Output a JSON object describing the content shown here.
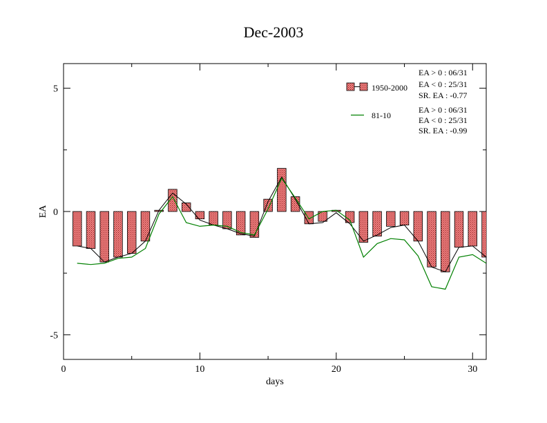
{
  "chart_data": {
    "type": "bar",
    "title": "Dec-2003",
    "xlabel": "days",
    "ylabel": "EA",
    "xlim": [
      0,
      31
    ],
    "ylim": [
      -6,
      6
    ],
    "x_ticks": [
      0,
      10,
      20,
      30
    ],
    "y_ticks": [
      -5,
      0,
      5
    ],
    "x": [
      1,
      2,
      3,
      4,
      5,
      6,
      7,
      8,
      9,
      10,
      11,
      12,
      13,
      14,
      15,
      16,
      17,
      18,
      19,
      20,
      21,
      22,
      23,
      24,
      25,
      26,
      27,
      28,
      29,
      30,
      31
    ],
    "series": [
      {
        "name": "1950-2000",
        "kind": "bar",
        "color": "#e87070",
        "values": [
          -1.4,
          -1.5,
          -2.05,
          -1.85,
          -1.7,
          -1.2,
          0.05,
          0.9,
          0.35,
          -0.3,
          -0.55,
          -0.7,
          -0.95,
          -1.05,
          0.5,
          1.75,
          0.6,
          -0.5,
          -0.4,
          0.05,
          -0.45,
          -1.25,
          -1.0,
          -0.6,
          -0.55,
          -1.2,
          -2.25,
          -2.45,
          -1.45,
          -1.4,
          -1.85
        ]
      },
      {
        "name": "1950-2000",
        "kind": "line",
        "color": "#000000",
        "values": [
          -1.4,
          -1.5,
          -2.05,
          -1.85,
          -1.7,
          -1.2,
          0.05,
          0.75,
          0.3,
          -0.35,
          -0.55,
          -0.7,
          -0.9,
          -1.0,
          0.4,
          1.4,
          0.5,
          -0.5,
          -0.45,
          -0.05,
          -0.5,
          -1.2,
          -0.95,
          -0.65,
          -0.55,
          -1.2,
          -2.25,
          -2.45,
          -1.45,
          -1.4,
          -1.85
        ]
      },
      {
        "name": "81-10",
        "kind": "line",
        "color": "#008000",
        "values": [
          -2.1,
          -2.15,
          -2.1,
          -1.9,
          -1.85,
          -1.5,
          -0.1,
          0.6,
          -0.45,
          -0.6,
          -0.55,
          -0.6,
          -0.85,
          -0.95,
          0.1,
          1.35,
          0.55,
          -0.3,
          0.0,
          0.05,
          -0.35,
          -1.85,
          -1.3,
          -1.1,
          -1.15,
          -1.8,
          -3.05,
          -3.15,
          -1.85,
          -1.75,
          -2.1
        ]
      }
    ],
    "legend": [
      {
        "label": "1950-2000",
        "stats": [
          "EA > 0 : 06/31",
          "EA < 0 : 25/31",
          "SR. EA : -0.77"
        ]
      },
      {
        "label": "81-10",
        "stats": [
          "EA > 0 : 06/31",
          "EA < 0 : 25/31",
          "SR. EA : -0.99"
        ]
      }
    ],
    "legend_position": "top-right",
    "grid": false
  }
}
